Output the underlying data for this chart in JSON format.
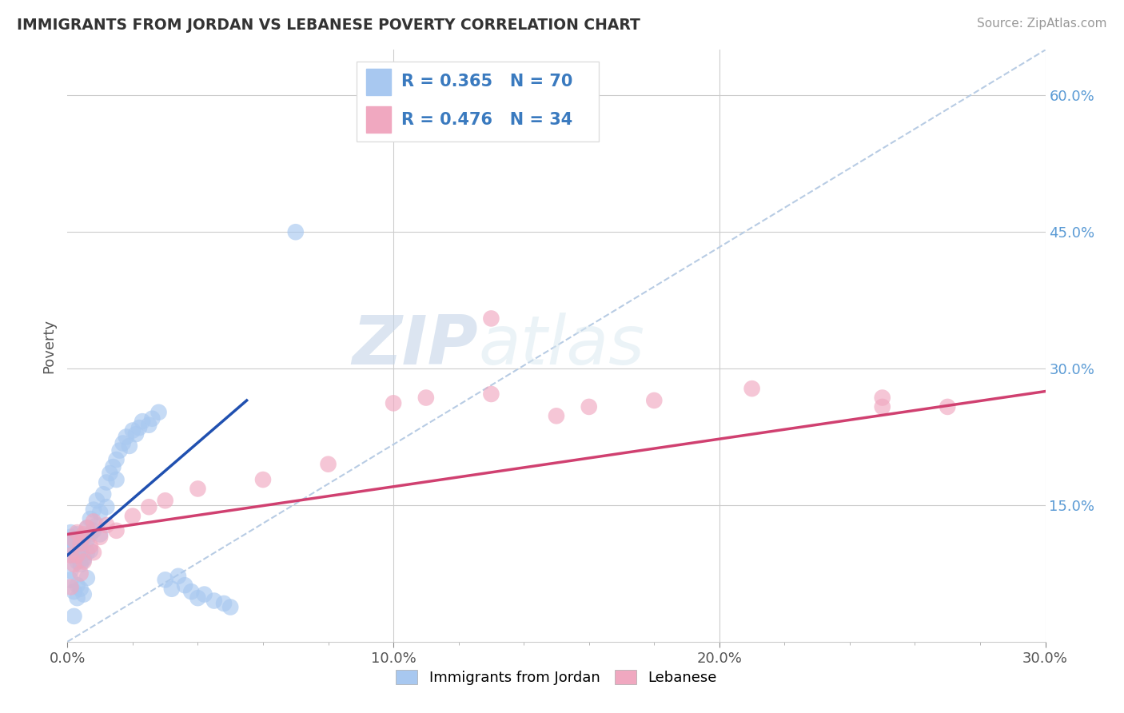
{
  "title": "IMMIGRANTS FROM JORDAN VS LEBANESE POVERTY CORRELATION CHART",
  "source": "Source: ZipAtlas.com",
  "ylabel": "Poverty",
  "xlim": [
    0.0,
    0.3
  ],
  "ylim": [
    0.0,
    0.65
  ],
  "xtick_labels": [
    "0.0%",
    "",
    "",
    "",
    "",
    "10.0%",
    "",
    "",
    "",
    "",
    "20.0%",
    "",
    "",
    "",
    "",
    "30.0%"
  ],
  "xtick_values": [
    0.0,
    0.02,
    0.04,
    0.06,
    0.08,
    0.1,
    0.12,
    0.14,
    0.16,
    0.18,
    0.2,
    0.22,
    0.24,
    0.26,
    0.28,
    0.3
  ],
  "xtick_major_labels": [
    "0.0%",
    "10.0%",
    "20.0%",
    "30.0%"
  ],
  "xtick_major_values": [
    0.0,
    0.1,
    0.2,
    0.3
  ],
  "ytick_labels": [
    "15.0%",
    "30.0%",
    "45.0%",
    "60.0%"
  ],
  "ytick_values": [
    0.15,
    0.3,
    0.45,
    0.6
  ],
  "bottom_legend1": "Immigrants from Jordan",
  "bottom_legend2": "Lebanese",
  "jordan_color": "#a8c8f0",
  "lebanese_color": "#f0a8c0",
  "jordan_line_color": "#2050b0",
  "lebanese_line_color": "#d04070",
  "diag_line_color": "#b8cce4",
  "watermark_zip": "ZIP",
  "watermark_atlas": "atlas",
  "background_color": "#ffffff",
  "jordan_R": 0.365,
  "jordan_N": 70,
  "lebanese_R": 0.476,
  "lebanese_N": 34,
  "jordan_line_x0": 0.0,
  "jordan_line_y0": 0.095,
  "jordan_line_x1": 0.055,
  "jordan_line_y1": 0.265,
  "lebanese_line_x0": 0.0,
  "lebanese_line_y0": 0.118,
  "lebanese_line_x1": 0.3,
  "lebanese_line_y1": 0.275,
  "diag_line_x0": 0.0,
  "diag_line_y0": 0.0,
  "diag_line_x1": 0.3,
  "diag_line_y1": 0.65,
  "jordan_scatter_x": [
    0.001,
    0.001,
    0.001,
    0.001,
    0.002,
    0.002,
    0.002,
    0.002,
    0.002,
    0.003,
    0.003,
    0.003,
    0.003,
    0.004,
    0.004,
    0.004,
    0.004,
    0.005,
    0.005,
    0.005,
    0.006,
    0.006,
    0.006,
    0.007,
    0.007,
    0.007,
    0.008,
    0.008,
    0.009,
    0.009,
    0.01,
    0.01,
    0.011,
    0.012,
    0.012,
    0.013,
    0.014,
    0.015,
    0.015,
    0.016,
    0.017,
    0.018,
    0.019,
    0.02,
    0.021,
    0.022,
    0.023,
    0.025,
    0.026,
    0.028,
    0.03,
    0.032,
    0.034,
    0.036,
    0.038,
    0.04,
    0.042,
    0.045,
    0.048,
    0.05,
    0.001,
    0.001,
    0.002,
    0.003,
    0.003,
    0.004,
    0.005,
    0.006,
    0.07,
    0.002
  ],
  "jordan_scatter_y": [
    0.105,
    0.115,
    0.12,
    0.095,
    0.1,
    0.11,
    0.108,
    0.095,
    0.112,
    0.118,
    0.095,
    0.105,
    0.088,
    0.102,
    0.098,
    0.11,
    0.085,
    0.115,
    0.09,
    0.092,
    0.125,
    0.112,
    0.098,
    0.135,
    0.118,
    0.1,
    0.145,
    0.122,
    0.155,
    0.128,
    0.142,
    0.118,
    0.162,
    0.175,
    0.148,
    0.185,
    0.192,
    0.2,
    0.178,
    0.21,
    0.218,
    0.225,
    0.215,
    0.232,
    0.228,
    0.235,
    0.242,
    0.238,
    0.245,
    0.252,
    0.068,
    0.058,
    0.072,
    0.062,
    0.055,
    0.048,
    0.052,
    0.045,
    0.042,
    0.038,
    0.078,
    0.068,
    0.055,
    0.062,
    0.048,
    0.058,
    0.052,
    0.07,
    0.45,
    0.028
  ],
  "lebanese_scatter_x": [
    0.001,
    0.002,
    0.002,
    0.003,
    0.003,
    0.004,
    0.004,
    0.005,
    0.005,
    0.006,
    0.007,
    0.008,
    0.008,
    0.01,
    0.012,
    0.015,
    0.02,
    0.025,
    0.03,
    0.04,
    0.06,
    0.08,
    0.1,
    0.11,
    0.13,
    0.15,
    0.16,
    0.18,
    0.21,
    0.25,
    0.27,
    0.001,
    0.13,
    0.25
  ],
  "lebanese_scatter_y": [
    0.095,
    0.112,
    0.085,
    0.12,
    0.095,
    0.108,
    0.075,
    0.118,
    0.088,
    0.125,
    0.105,
    0.132,
    0.098,
    0.115,
    0.128,
    0.122,
    0.138,
    0.148,
    0.155,
    0.168,
    0.178,
    0.195,
    0.262,
    0.268,
    0.272,
    0.248,
    0.258,
    0.265,
    0.278,
    0.268,
    0.258,
    0.06,
    0.355,
    0.258
  ]
}
